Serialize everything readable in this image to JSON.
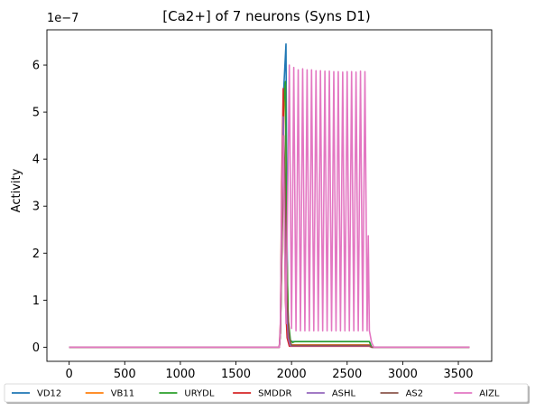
{
  "chart_data": {
    "type": "line",
    "title": "[Ca2+] of 7 neurons (Syns D1)",
    "xlabel": "",
    "ylabel": "Activity",
    "y_scale_label": "1e−7",
    "xlim": [
      -200,
      3800
    ],
    "ylim": [
      -0.3,
      6.75
    ],
    "y_multiplier": 1e-07,
    "x_ticks": [
      0,
      500,
      1000,
      1500,
      2000,
      2500,
      3000,
      3500
    ],
    "y_ticks": [
      0,
      1,
      2,
      3,
      4,
      5,
      6
    ],
    "grid": false,
    "legend_placement": "below plot, single row",
    "series": [
      {
        "name": "VD12",
        "color": "#1f77b4",
        "x": [
          0,
          1890,
          1900,
          1915,
          1930,
          1950,
          1958,
          1965,
          1975,
          1990,
          2010,
          2700,
          2720,
          3600
        ],
        "y": [
          0,
          0,
          0.3,
          2.5,
          5.5,
          6.45,
          3.0,
          1.0,
          0.3,
          0.12,
          0.12,
          0.12,
          0.0,
          0
        ]
      },
      {
        "name": "VB11",
        "color": "#ff7f0e",
        "x": [
          0,
          1890,
          1900,
          1915,
          1930,
          1945,
          1955,
          1970,
          1990,
          2700,
          2720,
          3600
        ],
        "y": [
          0,
          0,
          0.3,
          2.4,
          5.0,
          5.6,
          2.5,
          0.5,
          0.05,
          0.05,
          0.0,
          0
        ]
      },
      {
        "name": "URYDL",
        "color": "#2ca02c",
        "x": [
          0,
          1890,
          1900,
          1915,
          1930,
          1945,
          1955,
          1970,
          1990,
          2010,
          2030,
          2700,
          2720,
          3600
        ],
        "y": [
          0,
          0,
          0.3,
          2.4,
          5.2,
          5.65,
          2.5,
          0.6,
          0.15,
          0.1,
          0.12,
          0.12,
          0.0,
          0
        ]
      },
      {
        "name": "SMDDR",
        "color": "#d62728",
        "x": [
          0,
          1890,
          1900,
          1912,
          1925,
          1935,
          1945,
          1960,
          1980,
          2700,
          2720,
          3600
        ],
        "y": [
          0,
          0,
          0.5,
          3.5,
          5.5,
          3.0,
          1.0,
          0.2,
          0.02,
          0.02,
          0.0,
          0
        ]
      },
      {
        "name": "ASHL",
        "color": "#9467bd",
        "x": [
          0,
          1890,
          1900,
          1912,
          1925,
          1940,
          1955,
          1970,
          1990,
          2700,
          2720,
          3600
        ],
        "y": [
          0,
          0,
          0.4,
          2.8,
          4.9,
          3.0,
          1.0,
          0.2,
          0.03,
          0.03,
          0.0,
          0
        ]
      },
      {
        "name": "AS2",
        "color": "#8c564b",
        "x": [
          0,
          1890,
          1900,
          1915,
          1930,
          1945,
          1960,
          1980,
          2000,
          2700,
          2720,
          3600
        ],
        "y": [
          0,
          0,
          0.3,
          2.2,
          4.5,
          3.2,
          1.0,
          0.2,
          0.04,
          0.04,
          0.0,
          0
        ]
      },
      {
        "name": "AIZL",
        "color": "#e377c2",
        "x": [
          0,
          1890,
          1898,
          1910,
          1925,
          1940,
          1950,
          1962,
          1980,
          2000,
          2020,
          2040,
          2060,
          2080,
          2100,
          2120,
          2140,
          2160,
          2180,
          2200,
          2220,
          2240,
          2260,
          2280,
          2300,
          2320,
          2340,
          2360,
          2380,
          2400,
          2420,
          2440,
          2460,
          2480,
          2500,
          2520,
          2540,
          2560,
          2580,
          2600,
          2620,
          2640,
          2660,
          2680,
          2690,
          2700,
          2720,
          2740,
          3600
        ],
        "y": [
          0,
          0,
          0.3,
          2.5,
          4.5,
          2.0,
          0.5,
          2.5,
          6.0,
          0.4,
          5.95,
          0.35,
          5.9,
          0.35,
          5.92,
          0.35,
          5.9,
          0.35,
          5.9,
          0.35,
          5.88,
          0.35,
          5.88,
          0.35,
          5.87,
          0.35,
          5.87,
          0.35,
          5.86,
          0.35,
          5.86,
          0.35,
          5.85,
          0.35,
          5.86,
          0.35,
          5.86,
          0.35,
          5.85,
          0.35,
          5.87,
          0.35,
          5.86,
          0.35,
          2.37,
          0.35,
          0.1,
          0.0,
          0
        ]
      }
    ]
  }
}
